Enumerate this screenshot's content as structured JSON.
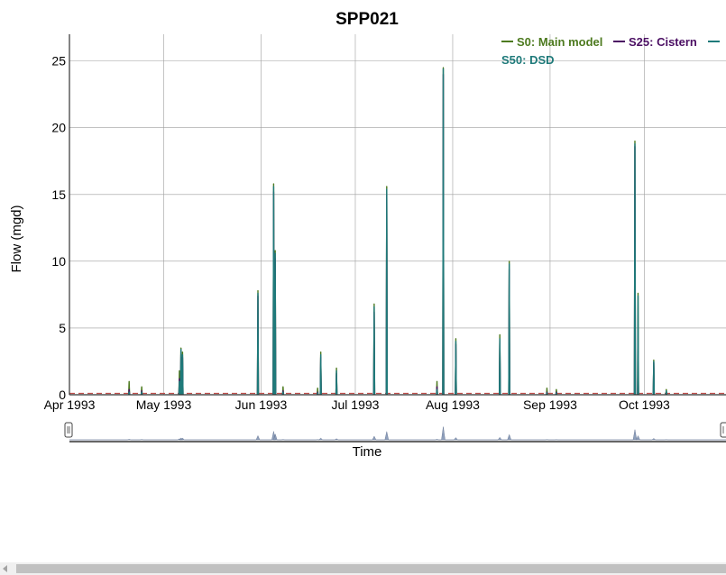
{
  "chart_data": {
    "type": "line",
    "title": "SPP021",
    "xlabel": "Time",
    "ylabel": "Flow (mgd)",
    "x_range": [
      "1993-04-01",
      "1993-10-27"
    ],
    "x_ticks": [
      {
        "date": "1993-04-01",
        "label": "Apr 1993"
      },
      {
        "date": "1993-05-01",
        "label": "May 1993"
      },
      {
        "date": "1993-06-01",
        "label": "Jun 1993"
      },
      {
        "date": "1993-07-01",
        "label": "Jul 1993"
      },
      {
        "date": "1993-08-01",
        "label": "Aug 1993"
      },
      {
        "date": "1993-09-01",
        "label": "Sep 1993"
      },
      {
        "date": "1993-10-01",
        "label": "Oct 1993"
      }
    ],
    "ylim": [
      0,
      27
    ],
    "y_ticks": [
      0,
      5,
      10,
      15,
      20,
      25
    ],
    "grid": true,
    "legend_position": "top-right",
    "range_selector": true,
    "reference_line": {
      "value": 0.1,
      "color": "#c0504d",
      "style": "dashed"
    },
    "series": [
      {
        "name": "S0: Main model",
        "color": "#4d7a1f",
        "x": [
          "1993-04-20",
          "1993-04-24",
          "1993-05-06",
          "1993-05-06 12:00",
          "1993-05-07",
          "1993-05-31",
          "1993-06-05",
          "1993-06-05 12:00",
          "1993-06-08",
          "1993-06-19",
          "1993-06-20",
          "1993-06-25",
          "1993-07-07",
          "1993-07-11",
          "1993-07-27",
          "1993-07-29",
          "1993-08-02",
          "1993-08-16",
          "1993-08-19",
          "1993-08-31",
          "1993-09-03",
          "1993-09-28",
          "1993-09-29",
          "1993-10-04",
          "1993-10-08"
        ],
        "y": [
          1.0,
          0.6,
          1.8,
          3.5,
          3.2,
          7.8,
          15.8,
          10.8,
          0.6,
          0.5,
          3.2,
          2.0,
          6.8,
          15.6,
          1.0,
          24.5,
          4.2,
          4.5,
          10.0,
          0.5,
          0.4,
          19.0,
          7.6,
          2.6,
          0.4
        ]
      },
      {
        "name": "S25: Cistern",
        "color": "#4b0f63",
        "x": [
          "1993-04-20",
          "1993-04-24",
          "1993-05-06",
          "1993-05-06 12:00",
          "1993-05-07",
          "1993-05-31",
          "1993-06-05",
          "1993-06-05 12:00",
          "1993-06-08",
          "1993-06-19",
          "1993-06-20",
          "1993-06-25",
          "1993-07-07",
          "1993-07-11",
          "1993-07-27",
          "1993-07-29",
          "1993-08-02",
          "1993-08-16",
          "1993-08-19",
          "1993-08-31",
          "1993-09-03",
          "1993-09-28",
          "1993-09-29",
          "1993-10-04",
          "1993-10-08"
        ],
        "y": [
          0.4,
          0.3,
          1.2,
          3.0,
          2.8,
          7.4,
          15.2,
          10.2,
          0.3,
          0.2,
          2.8,
          1.6,
          6.2,
          15.0,
          0.6,
          24.0,
          3.8,
          4.0,
          9.4,
          0.2,
          0.2,
          18.6,
          2.8,
          2.4,
          0.2
        ]
      },
      {
        "name": "S50: DSD",
        "color": "#1f7a7a",
        "x": [
          "1993-04-20",
          "1993-04-24",
          "1993-05-06",
          "1993-05-06 12:00",
          "1993-05-07",
          "1993-05-31",
          "1993-06-05",
          "1993-06-05 12:00",
          "1993-06-08",
          "1993-06-19",
          "1993-06-20",
          "1993-06-25",
          "1993-07-07",
          "1993-07-11",
          "1993-07-27",
          "1993-07-29",
          "1993-08-02",
          "1993-08-16",
          "1993-08-19",
          "1993-08-31",
          "1993-09-03",
          "1993-09-28",
          "1993-09-29",
          "1993-10-04",
          "1993-10-08"
        ],
        "y": [
          0.2,
          0.2,
          1.0,
          3.4,
          3.0,
          7.6,
          15.6,
          10.6,
          0.2,
          0.1,
          3.0,
          1.8,
          6.6,
          15.4,
          0.4,
          24.4,
          4.0,
          4.2,
          9.8,
          0.1,
          0.1,
          18.8,
          7.4,
          2.5,
          0.3
        ]
      }
    ]
  }
}
